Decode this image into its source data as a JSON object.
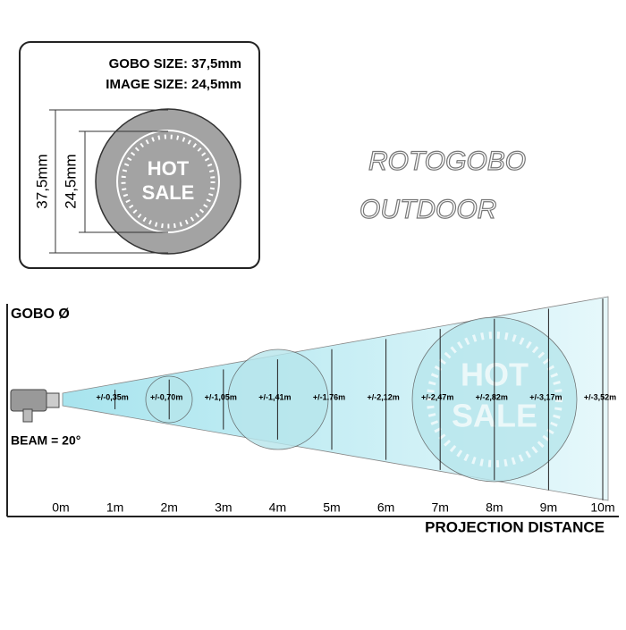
{
  "gobo_box": {
    "gobo_size": "GOBO SIZE: 37,5mm",
    "image_size": "IMAGE SIZE: 24,5mm",
    "outer_dimension": "37,5mm",
    "inner_dimension": "24,5mm",
    "gobo_text": [
      "HOT",
      "SALE"
    ]
  },
  "title": [
    "ROTOGOBO",
    "OUTDOOR"
  ],
  "diagram": {
    "y_label": "GOBO Ø",
    "beam": "BEAM = 20°",
    "x_label": "PROJECTION DISTANCE",
    "distances": [
      "0m",
      "1m",
      "2m",
      "3m",
      "4m",
      "5m",
      "6m",
      "7m",
      "8m",
      "9m",
      "10m"
    ],
    "diameters": [
      "+/-0,35m",
      "+/-0,70m",
      "+/-1,05m",
      "+/-1,41m",
      "+/-1.76m",
      "+/-2,12m",
      "+/-2,47m",
      "+/-2,82m",
      "+/-3,17m",
      "+/-3,52m"
    ]
  }
}
